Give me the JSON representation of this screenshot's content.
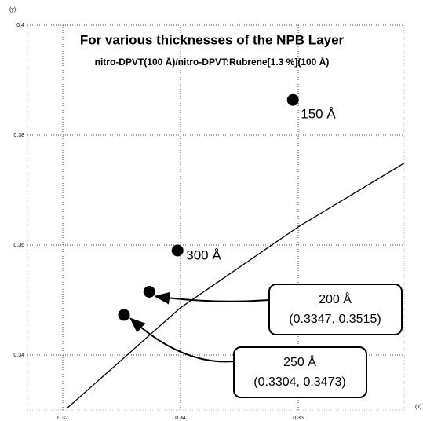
{
  "chart_data": {
    "type": "scatter",
    "title": "For various thicknesses of the NPB Layer",
    "subtitle": "nitro-DPVT(100 Å)/nitro-DPVT:Rubrene[1.3 %](100 Å)",
    "x_label": "(x)",
    "y_label": "(y)",
    "xlim": [
      0.314,
      0.378
    ],
    "ylim": [
      0.33,
      0.4
    ],
    "xticks": [
      0.32,
      0.34,
      0.36
    ],
    "yticks": [
      0.34,
      0.36,
      0.38,
      0.4
    ],
    "grid": true,
    "series": [
      {
        "color": "#000000",
        "x": [
          0.3591,
          0.3395,
          0.3347,
          0.3304
        ],
        "values": [
          0.3864,
          0.359,
          0.3515,
          0.3473
        ],
        "labels": [
          "150 Å",
          "300 Å",
          "200 Å",
          "250 Å"
        ]
      }
    ],
    "curve": {
      "color": "#000000",
      "x": [
        0.3207,
        0.34,
        0.36,
        0.378
      ],
      "values": [
        0.3303,
        0.3486,
        0.3633,
        0.3749
      ]
    },
    "annotations": [
      "(0.3347, 0.3515)",
      "(0.3304, 0.3473)"
    ]
  }
}
